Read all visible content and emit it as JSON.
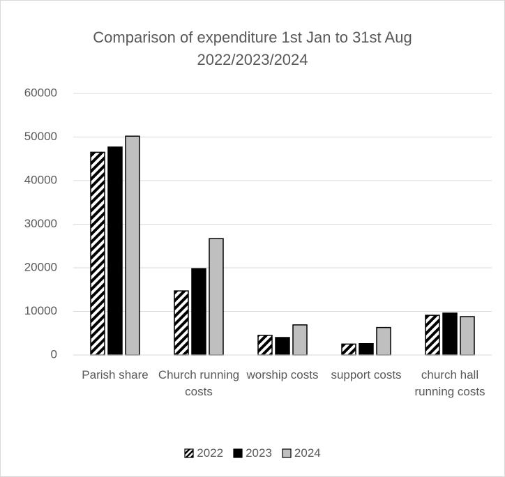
{
  "chart_data": {
    "type": "bar",
    "title": "Comparison of expenditure 1st Jan to 31st Aug 2022/2023/2024",
    "categories": [
      "Parish share",
      "Church running costs",
      "worship costs",
      "support costs",
      "church hall running costs"
    ],
    "series": [
      {
        "name": "2022",
        "color": "#000000",
        "pattern": "hatch",
        "values": [
          46500,
          14700,
          4500,
          2500,
          9100
        ]
      },
      {
        "name": "2023",
        "color": "#000000",
        "values": [
          47700,
          19800,
          4000,
          2600,
          9600
        ]
      },
      {
        "name": "2024",
        "color": "#bfbfbf",
        "values": [
          50200,
          26700,
          6900,
          6300,
          8800
        ]
      }
    ],
    "ylim": [
      0,
      60000
    ],
    "yticks": [
      0,
      10000,
      20000,
      30000,
      40000,
      50000,
      60000
    ],
    "grid": true,
    "legend": "bottom"
  }
}
